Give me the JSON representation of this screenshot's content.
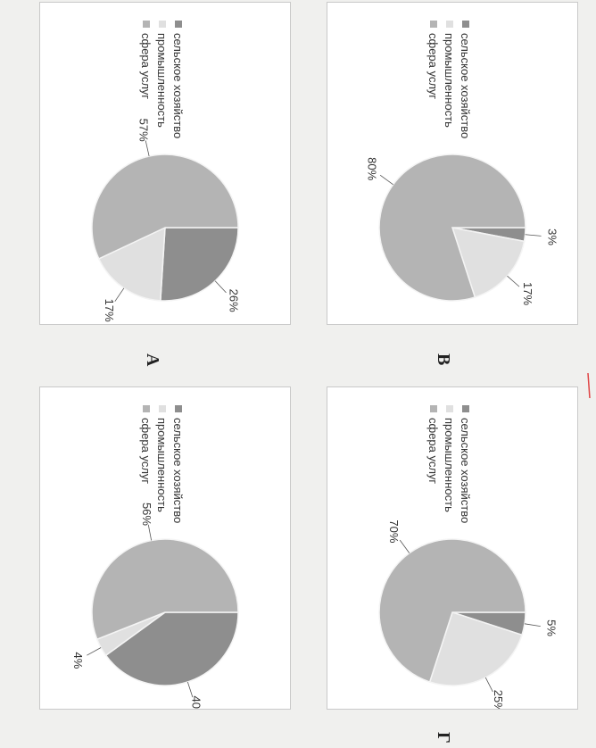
{
  "legend_labels": [
    "сельское хозяйство",
    "промышленность",
    "сфера услуг"
  ],
  "colors": {
    "agriculture": "#8e8e8e",
    "industry": "#e0e0e0",
    "services": "#b4b4b4",
    "mark": "#e04444"
  },
  "chart_data": [
    {
      "type": "pie",
      "label": "А",
      "categories": [
        "сельское хозяйство",
        "промышленность",
        "сфера услуг"
      ],
      "values": [
        26,
        17,
        57
      ],
      "data_labels": [
        "26%",
        "17%",
        "57%"
      ],
      "legend": "left"
    },
    {
      "type": "pie",
      "label": "Б",
      "categories": [
        "сельское хозяйство",
        "промышленность",
        "сфера услуг"
      ],
      "values": [
        3,
        17,
        80
      ],
      "data_labels": [
        "3%",
        "17%",
        "80%"
      ],
      "legend": "left"
    },
    {
      "type": "pie",
      "label": "В",
      "categories": [
        "сельское хозяйство",
        "промышленность",
        "сфера услуг"
      ],
      "values": [
        40,
        4,
        56
      ],
      "data_labels": [
        "40%",
        "4%",
        "56%"
      ],
      "legend": "left"
    },
    {
      "type": "pie",
      "label": "Г",
      "categories": [
        "сельское хозяйство",
        "промышленность",
        "сфера услуг"
      ],
      "values": [
        5,
        25,
        70
      ],
      "data_labels": [
        "5%",
        "25%",
        "70%"
      ],
      "legend": "left"
    }
  ]
}
